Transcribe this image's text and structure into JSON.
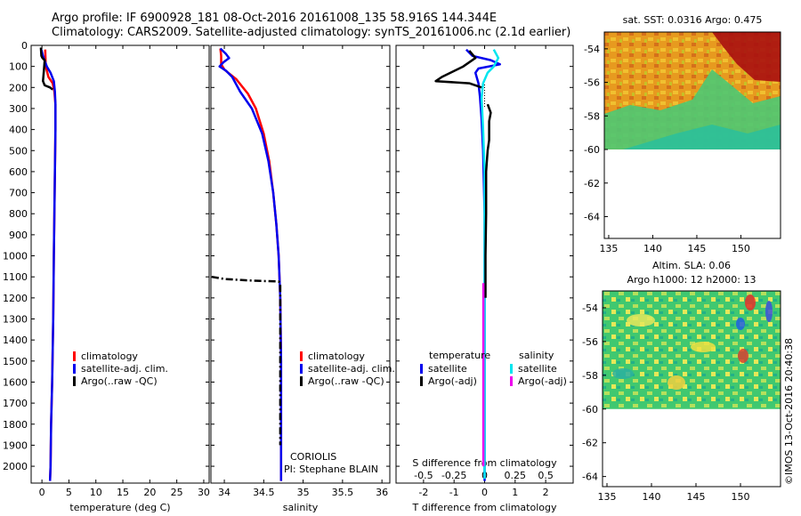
{
  "header": {
    "line1": "Argo profile: IF 6900928_181 08-Oct-2016 20161008_135 58.916S 144.344E",
    "line2": "Climatology: CARS2009. Satellite-adjusted climatology: synTS_20161006.nc (2.1d earlier)"
  },
  "stamp": "©IMOS 13-Oct-2016 20:40:38",
  "colors": {
    "climatology": "#ff0000",
    "satellite": "#0000ee",
    "argo": "#000000",
    "satellite_salinity": "#00e5ee",
    "argo_salinity": "#ee00ee"
  },
  "chart_data": [
    {
      "type": "line",
      "panel": "temperature",
      "xlabel": "temperature (deg C)",
      "ylabel": "",
      "xlim": [
        -2,
        31
      ],
      "ylim": [
        2080,
        0
      ],
      "x_ticks": [
        "0",
        "5",
        "10",
        "15",
        "20",
        "25",
        "30"
      ],
      "y_ticks": [
        "0",
        "100",
        "200",
        "300",
        "400",
        "500",
        "600",
        "700",
        "800",
        "900",
        "1000",
        "1100",
        "1200",
        "1300",
        "1400",
        "1500",
        "1600",
        "1700",
        "1800",
        "1900",
        "2000"
      ],
      "legend": [
        "climatology",
        "satellite-adj. clim.",
        "Argo(..raw -QC)"
      ],
      "series": [
        {
          "name": "climatology",
          "points": [
            [
              0.6,
              20
            ],
            [
              0.7,
              100
            ],
            [
              1.2,
              150
            ],
            [
              2.0,
              180
            ],
            [
              2.3,
              220
            ],
            [
              2.5,
              280
            ],
            [
              2.5,
              400
            ],
            [
              2.4,
              600
            ],
            [
              2.3,
              800
            ],
            [
              2.2,
              1000
            ],
            [
              2.1,
              1300
            ],
            [
              1.9,
              1600
            ],
            [
              1.7,
              1800
            ],
            [
              1.6,
              2000
            ],
            [
              1.5,
              2070
            ]
          ]
        },
        {
          "name": "satellite-adj. clim.",
          "points": [
            [
              -0.1,
              20
            ],
            [
              0.2,
              50
            ],
            [
              0.9,
              100
            ],
            [
              1.6,
              130
            ],
            [
              2.2,
              170
            ],
            [
              2.4,
              220
            ],
            [
              2.5,
              280
            ],
            [
              2.5,
              400
            ],
            [
              2.4,
              600
            ],
            [
              2.3,
              800
            ],
            [
              2.2,
              1000
            ],
            [
              2.1,
              1300
            ],
            [
              1.9,
              1600
            ],
            [
              1.7,
              1800
            ],
            [
              1.6,
              2000
            ],
            [
              1.5,
              2070
            ]
          ]
        },
        {
          "name": "Argo(..raw -QC)",
          "points": [
            [
              -0.2,
              10
            ],
            [
              -0.1,
              50
            ],
            [
              0.1,
              60
            ],
            [
              0.3,
              65
            ],
            [
              0.5,
              70
            ],
            [
              0.4,
              110
            ],
            [
              0.3,
              140
            ],
            [
              0.2,
              170
            ],
            [
              0.5,
              190
            ],
            [
              1.5,
              200
            ],
            [
              2.0,
              210
            ]
          ]
        }
      ]
    },
    {
      "type": "line",
      "panel": "salinity",
      "xlabel": "salinity",
      "xlim": [
        33.83,
        36.1
      ],
      "ylim": [
        2080,
        0
      ],
      "x_ticks": [
        "34",
        "34.5",
        "35",
        "35.5",
        "36"
      ],
      "legend": [
        "climatology",
        "satellite-adj. clim.",
        "Argo(..raw -QC)"
      ],
      "annotations": [
        "CORIOLIS",
        "PI: Stephane BLAIN"
      ],
      "series": [
        {
          "name": "climatology",
          "points": [
            [
              33.95,
              15
            ],
            [
              33.96,
              50
            ],
            [
              33.96,
              90
            ],
            [
              34.0,
              115
            ],
            [
              34.05,
              130
            ],
            [
              34.15,
              160
            ],
            [
              34.3,
              230
            ],
            [
              34.4,
              300
            ],
            [
              34.5,
              420
            ],
            [
              34.57,
              550
            ],
            [
              34.62,
              700
            ],
            [
              34.66,
              850
            ],
            [
              34.69,
              1000
            ],
            [
              34.71,
              1200
            ],
            [
              34.72,
              1500
            ],
            [
              34.72,
              1800
            ],
            [
              34.72,
              2070
            ]
          ]
        },
        {
          "name": "satellite-adj. clim.",
          "points": [
            [
              33.95,
              15
            ],
            [
              34.02,
              40
            ],
            [
              34.06,
              60
            ],
            [
              33.99,
              80
            ],
            [
              33.94,
              100
            ],
            [
              34.02,
              120
            ],
            [
              34.1,
              150
            ],
            [
              34.2,
              220
            ],
            [
              34.35,
              300
            ],
            [
              34.48,
              420
            ],
            [
              34.56,
              550
            ],
            [
              34.62,
              700
            ],
            [
              34.66,
              850
            ],
            [
              34.69,
              1000
            ],
            [
              34.71,
              1200
            ],
            [
              34.72,
              1500
            ],
            [
              34.72,
              1800
            ],
            [
              34.72,
              2070
            ]
          ]
        },
        {
          "name": "Argo(..raw -QC)",
          "dashed": true,
          "points": [
            [
              33.84,
              1100
            ],
            [
              34.0,
              1110
            ],
            [
              34.3,
              1117
            ],
            [
              34.5,
              1120
            ],
            [
              34.69,
              1122
            ],
            [
              34.71,
              1130
            ],
            [
              34.71,
              1500
            ],
            [
              34.71,
              1900
            ]
          ]
        }
      ]
    },
    {
      "type": "line",
      "panel": "difference",
      "xlabel": "T difference from climatology",
      "xlabel_top": "S difference from climatology",
      "xlim": [
        -2.9,
        2.9
      ],
      "ylim": [
        2080,
        0
      ],
      "x_ticks": [
        "-2",
        "-1",
        "0",
        "1",
        "2"
      ],
      "x_ticks_top": [
        "-0.5",
        "-0.25",
        "0",
        "0.25",
        "0.5"
      ],
      "legend_groups": [
        "temperature",
        "salinity"
      ],
      "legend": [
        "satellite",
        "Argo(-adj)",
        "satellite",
        "Argo(-adj)"
      ],
      "series": [
        {
          "name": "satellite",
          "group": "temperature",
          "points": [
            [
              -0.6,
              20
            ],
            [
              -0.4,
              50
            ],
            [
              0.2,
              70
            ],
            [
              0.5,
              90
            ],
            [
              -0.2,
              110
            ],
            [
              -0.3,
              130
            ],
            [
              -0.2,
              180
            ],
            [
              -0.15,
              250
            ],
            [
              -0.1,
              350
            ],
            [
              -0.05,
              500
            ],
            [
              0.0,
              800
            ],
            [
              0.0,
              1300
            ],
            [
              0.0,
              2000
            ],
            [
              0.0,
              2070
            ]
          ]
        },
        {
          "name": "satellite",
          "group": "salinity",
          "points": [
            [
              0.3,
              20
            ],
            [
              0.45,
              60
            ],
            [
              0.3,
              100
            ],
            [
              0.1,
              130
            ],
            [
              -0.05,
              180
            ],
            [
              -0.1,
              250
            ],
            [
              -0.05,
              400
            ],
            [
              0.0,
              600
            ],
            [
              0.0,
              1000
            ],
            [
              0.0,
              1400
            ],
            [
              0.0,
              1800
            ],
            [
              0.0,
              2060
            ]
          ]
        },
        {
          "name": "Argo(-adj)",
          "group": "temperature",
          "points": [
            [
              -0.5,
              25
            ],
            [
              -0.3,
              60
            ],
            [
              -0.7,
              100
            ],
            [
              -1.4,
              150
            ],
            [
              -1.6,
              170
            ],
            [
              -0.5,
              180
            ],
            [
              -0.1,
              200
            ]
          ]
        },
        {
          "name": "Argo(-adj)",
          "group": "temperature",
          "points": [
            [
              0.1,
              280
            ],
            [
              0.2,
              320
            ],
            [
              0.15,
              360
            ],
            [
              0.15,
              450
            ],
            [
              0.1,
              500
            ],
            [
              0.05,
              600
            ],
            [
              0.05,
              800
            ],
            [
              0.03,
              1000
            ],
            [
              0.03,
              1200
            ]
          ]
        },
        {
          "name": "Argo(-adj)",
          "group": "salinity",
          "points": [
            [
              -0.04,
              1130
            ],
            [
              -0.04,
              1300
            ],
            [
              -0.04,
              1500
            ],
            [
              -0.04,
              1700
            ],
            [
              -0.04,
              1900
            ],
            [
              -0.04,
              2000
            ]
          ]
        }
      ]
    },
    {
      "type": "heatmap",
      "panel": "sst",
      "title": "sat. SST: 0.0316 Argo: 0.475",
      "x_ticks": [
        "135",
        "140",
        "145",
        "150"
      ],
      "y_ticks": [
        "-54",
        "-56",
        "-58",
        "-60",
        "-62",
        "-64"
      ],
      "xlim": [
        134.5,
        154.5
      ],
      "ylim": [
        -65.3,
        -53.0
      ],
      "data_ylim": [
        -60.0,
        -53.0
      ]
    },
    {
      "type": "heatmap",
      "panel": "sla",
      "title": "Altim. SLA: 0.06",
      "subtitle": "Argo h1000: 12 h2000: 13",
      "x_ticks": [
        "135",
        "140",
        "145",
        "150"
      ],
      "y_ticks": [
        "-54",
        "-56",
        "-58",
        "-60",
        "-62",
        "-64"
      ],
      "xlim": [
        134.5,
        154.5
      ],
      "ylim": [
        -64.6,
        -53.0
      ],
      "data_ylim": [
        -60.0,
        -53.0
      ]
    }
  ]
}
